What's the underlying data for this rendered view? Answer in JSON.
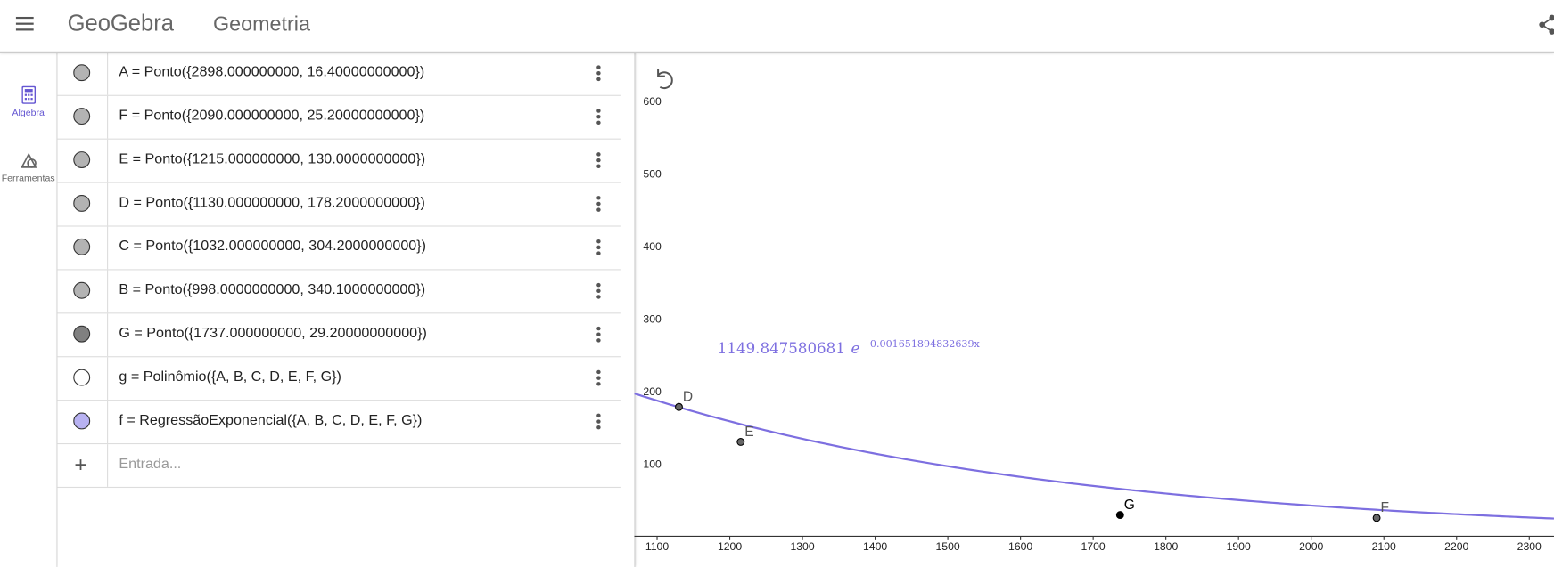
{
  "header": {
    "logo": "GeoGebra",
    "app_title": "Geometria"
  },
  "sidebar": {
    "items": [
      "Algebra",
      "Ferramentas"
    ]
  },
  "algebra": {
    "rows": [
      {
        "text": "A = Ponto({2898.000000000, 16.40000000000})",
        "color": "#b3b3b3"
      },
      {
        "text": "F = Ponto({2090.000000000, 25.20000000000})",
        "color": "#b3b3b3"
      },
      {
        "text": "E = Ponto({1215.000000000, 130.0000000000})",
        "color": "#b3b3b3"
      },
      {
        "text": "D = Ponto({1130.000000000, 178.2000000000})",
        "color": "#b3b3b3"
      },
      {
        "text": "C = Ponto({1032.000000000, 304.2000000000})",
        "color": "#b3b3b3"
      },
      {
        "text": "B = Ponto({998.0000000000, 340.1000000000})",
        "color": "#b3b3b3"
      },
      {
        "text": "G = Ponto({1737.000000000, 29.20000000000})",
        "color": "#808080"
      },
      {
        "text": "g = Polinômio({A, B, C, D, E, F, G})",
        "color": "#ffffff"
      },
      {
        "text": "f = RegressãoExponencial({A, B, C, D, E, F, G})",
        "color": "#b8b2f2"
      }
    ],
    "input_placeholder": "Entrada..."
  },
  "graphics": {
    "xlim": [
      1068.6,
      2334
    ],
    "ylim": [
      -42.4,
      667
    ],
    "xticks": [
      1100,
      1200,
      1300,
      1400,
      1500,
      1600,
      1700,
      1800,
      1900,
      2000,
      2100,
      2200,
      2300
    ],
    "yticks": [
      100,
      200,
      300,
      400,
      500,
      600
    ],
    "points": [
      {
        "label": "A",
        "x": 2898,
        "y": 16.4,
        "color": "#666666"
      },
      {
        "label": "F",
        "x": 2090,
        "y": 25.2,
        "color": "#666666"
      },
      {
        "label": "E",
        "x": 1215,
        "y": 130,
        "color": "#666666"
      },
      {
        "label": "D",
        "x": 1130,
        "y": 178.2,
        "color": "#666666"
      },
      {
        "label": "C",
        "x": 1032,
        "y": 304.2,
        "color": "#666666"
      },
      {
        "label": "B",
        "x": 998,
        "y": 340.1,
        "color": "#666666"
      },
      {
        "label": "G",
        "x": 1737,
        "y": 29.2,
        "color": "#000000"
      }
    ],
    "curve": {
      "coefficient": 1149.847580681,
      "base": "e",
      "exponent": -0.001651894832639,
      "exponent_label": "−0.001651894832639x",
      "color": "#7d6fe0"
    }
  }
}
